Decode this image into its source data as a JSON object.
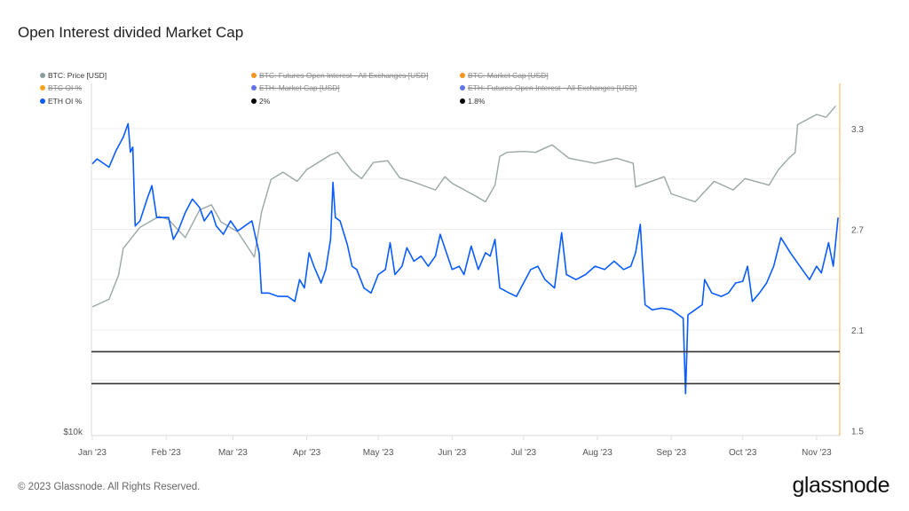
{
  "title": "Open Interest divided Market Cap",
  "footer": "© 2023 Glassnode. All Rights Reserved.",
  "logo": "glassnode",
  "legend": [
    {
      "label": "BTC: Price [USD]",
      "color": "#8c9b9b",
      "active": true
    },
    {
      "label": "BTC: Futures Open Interest - All Exchanges [USD]",
      "color": "#f7931a",
      "active": false
    },
    {
      "label": "BTC: Market Cap [USD]",
      "color": "#f7931a",
      "active": false
    },
    {
      "label": "BTC OI %",
      "color": "#f7a21a",
      "active": false
    },
    {
      "label": "ETH: Market Cap [USD]",
      "color": "#6272ea",
      "active": false
    },
    {
      "label": "ETH: Futures Open Interest - All Exchanges [USD]",
      "color": "#6272ea",
      "active": false
    },
    {
      "label": "ETH OI %",
      "color": "#0a5cff",
      "active": true
    },
    {
      "label": "2%",
      "color": "#000000",
      "active": true
    },
    {
      "label": "1.8%",
      "color": "#000000",
      "active": true
    }
  ],
  "chart_data": {
    "type": "line",
    "title": "Open Interest divided Market Cap",
    "x_ticks": [
      "Jan '23",
      "Feb '23",
      "Mar '23",
      "Apr '23",
      "May '23",
      "Jun '23",
      "Jul '23",
      "Aug '23",
      "Sep '23",
      "Oct '23",
      "Nov '23"
    ],
    "y_left": {
      "scale": "log",
      "range": [
        10000,
        40000
      ],
      "ticks": [
        "$10k"
      ]
    },
    "y_right": {
      "scale": "linear",
      "range": [
        1.47,
        3.57
      ],
      "ticks": [
        "3.3",
        "2.7",
        "2.1",
        "1.5"
      ],
      "grid": [
        1.8,
        2.1,
        2.4,
        2.7,
        3.0,
        3.3
      ]
    },
    "grid": true,
    "legend_placement": "top",
    "series": [
      {
        "name": "BTC: Price [USD]",
        "axis": "left",
        "color": "#9aa7a7",
        "points": [
          [
            "2023-01-01",
            16600
          ],
          [
            "2023-01-08",
            17100
          ],
          [
            "2023-01-12",
            18800
          ],
          [
            "2023-01-14",
            20900
          ],
          [
            "2023-01-21",
            22700
          ],
          [
            "2023-01-29",
            23700
          ],
          [
            "2023-02-02",
            23400
          ],
          [
            "2023-02-09",
            21800
          ],
          [
            "2023-02-15",
            24300
          ],
          [
            "2023-02-20",
            24800
          ],
          [
            "2023-02-24",
            23200
          ],
          [
            "2023-03-03",
            22300
          ],
          [
            "2023-03-10",
            20200
          ],
          [
            "2023-03-13",
            24100
          ],
          [
            "2023-03-17",
            27400
          ],
          [
            "2023-03-22",
            28200
          ],
          [
            "2023-03-28",
            27200
          ],
          [
            "2023-04-01",
            28500
          ],
          [
            "2023-04-11",
            30200
          ],
          [
            "2023-04-14",
            30500
          ],
          [
            "2023-04-20",
            28300
          ],
          [
            "2023-04-24",
            27500
          ],
          [
            "2023-04-29",
            29300
          ],
          [
            "2023-05-05",
            29500
          ],
          [
            "2023-05-10",
            27600
          ],
          [
            "2023-05-15",
            27200
          ],
          [
            "2023-05-25",
            26300
          ],
          [
            "2023-05-29",
            27700
          ],
          [
            "2023-06-01",
            27000
          ],
          [
            "2023-06-10",
            25800
          ],
          [
            "2023-06-15",
            25100
          ],
          [
            "2023-06-19",
            26800
          ],
          [
            "2023-06-21",
            30000
          ],
          [
            "2023-06-24",
            30500
          ],
          [
            "2023-07-01",
            30600
          ],
          [
            "2023-07-06",
            30500
          ],
          [
            "2023-07-13",
            31400
          ],
          [
            "2023-07-20",
            29800
          ],
          [
            "2023-07-31",
            29200
          ],
          [
            "2023-08-09",
            29800
          ],
          [
            "2023-08-16",
            29200
          ],
          [
            "2023-08-17",
            26600
          ],
          [
            "2023-08-29",
            27700
          ],
          [
            "2023-09-01",
            25900
          ],
          [
            "2023-09-11",
            25100
          ],
          [
            "2023-09-19",
            27200
          ],
          [
            "2023-09-27",
            26300
          ],
          [
            "2023-10-02",
            27500
          ],
          [
            "2023-10-12",
            26800
          ],
          [
            "2023-10-16",
            28500
          ],
          [
            "2023-10-20",
            29700
          ],
          [
            "2023-10-23",
            30500
          ],
          [
            "2023-10-24",
            34000
          ],
          [
            "2023-11-01",
            35400
          ],
          [
            "2023-11-05",
            35000
          ],
          [
            "2023-11-09",
            36600
          ]
        ]
      },
      {
        "name": "ETH OI %",
        "axis": "right",
        "color": "#0a5cff",
        "points": [
          [
            "2023-01-01",
            3.09
          ],
          [
            "2023-01-03",
            3.12
          ],
          [
            "2023-01-05",
            3.1
          ],
          [
            "2023-01-08",
            3.07
          ],
          [
            "2023-01-11",
            3.17
          ],
          [
            "2023-01-14",
            3.25
          ],
          [
            "2023-01-16",
            3.33
          ],
          [
            "2023-01-17",
            3.16
          ],
          [
            "2023-01-18",
            3.19
          ],
          [
            "2023-01-19",
            2.72
          ],
          [
            "2023-01-21",
            2.75
          ],
          [
            "2023-01-24",
            2.88
          ],
          [
            "2023-01-26",
            2.96
          ],
          [
            "2023-01-28",
            2.77
          ],
          [
            "2023-01-31",
            2.77
          ],
          [
            "2023-02-02",
            2.77
          ],
          [
            "2023-02-04",
            2.64
          ],
          [
            "2023-02-06",
            2.69
          ],
          [
            "2023-02-09",
            2.8
          ],
          [
            "2023-02-12",
            2.88
          ],
          [
            "2023-02-15",
            2.83
          ],
          [
            "2023-02-17",
            2.75
          ],
          [
            "2023-02-20",
            2.81
          ],
          [
            "2023-02-22",
            2.72
          ],
          [
            "2023-02-25",
            2.67
          ],
          [
            "2023-02-28",
            2.75
          ],
          [
            "2023-03-03",
            2.69
          ],
          [
            "2023-03-06",
            2.72
          ],
          [
            "2023-03-09",
            2.75
          ],
          [
            "2023-03-12",
            2.56
          ],
          [
            "2023-03-13",
            2.32
          ],
          [
            "2023-03-16",
            2.32
          ],
          [
            "2023-03-20",
            2.3
          ],
          [
            "2023-03-24",
            2.3
          ],
          [
            "2023-03-27",
            2.27
          ],
          [
            "2023-03-29",
            2.4
          ],
          [
            "2023-03-31",
            2.35
          ],
          [
            "2023-04-02",
            2.56
          ],
          [
            "2023-04-04",
            2.48
          ],
          [
            "2023-04-07",
            2.38
          ],
          [
            "2023-04-09",
            2.46
          ],
          [
            "2023-04-11",
            2.64
          ],
          [
            "2023-04-12",
            2.98
          ],
          [
            "2023-04-13",
            2.77
          ],
          [
            "2023-04-15",
            2.75
          ],
          [
            "2023-04-18",
            2.61
          ],
          [
            "2023-04-20",
            2.48
          ],
          [
            "2023-04-22",
            2.46
          ],
          [
            "2023-04-25",
            2.35
          ],
          [
            "2023-04-28",
            2.32
          ],
          [
            "2023-05-01",
            2.43
          ],
          [
            "2023-05-04",
            2.46
          ],
          [
            "2023-05-06",
            2.62
          ],
          [
            "2023-05-08",
            2.43
          ],
          [
            "2023-05-11",
            2.48
          ],
          [
            "2023-05-13",
            2.59
          ],
          [
            "2023-05-16",
            2.51
          ],
          [
            "2023-05-19",
            2.54
          ],
          [
            "2023-05-22",
            2.48
          ],
          [
            "2023-05-25",
            2.54
          ],
          [
            "2023-05-27",
            2.67
          ],
          [
            "2023-06-01",
            2.46
          ],
          [
            "2023-06-04",
            2.48
          ],
          [
            "2023-06-06",
            2.43
          ],
          [
            "2023-06-09",
            2.6
          ],
          [
            "2023-06-12",
            2.46
          ],
          [
            "2023-06-15",
            2.56
          ],
          [
            "2023-06-17",
            2.54
          ],
          [
            "2023-06-19",
            2.64
          ],
          [
            "2023-06-21",
            2.35
          ],
          [
            "2023-06-25",
            2.32
          ],
          [
            "2023-06-28",
            2.3
          ],
          [
            "2023-07-01",
            2.38
          ],
          [
            "2023-07-04",
            2.46
          ],
          [
            "2023-07-07",
            2.48
          ],
          [
            "2023-07-10",
            2.4
          ],
          [
            "2023-07-14",
            2.35
          ],
          [
            "2023-07-17",
            2.68
          ],
          [
            "2023-07-19",
            2.43
          ],
          [
            "2023-07-23",
            2.4
          ],
          [
            "2023-07-27",
            2.43
          ],
          [
            "2023-07-31",
            2.48
          ],
          [
            "2023-08-04",
            2.46
          ],
          [
            "2023-08-08",
            2.51
          ],
          [
            "2023-08-12",
            2.46
          ],
          [
            "2023-08-15",
            2.48
          ],
          [
            "2023-08-17",
            2.56
          ],
          [
            "2023-08-19",
            2.73
          ],
          [
            "2023-08-20",
            2.48
          ],
          [
            "2023-08-21",
            2.25
          ],
          [
            "2023-08-24",
            2.22
          ],
          [
            "2023-08-28",
            2.23
          ],
          [
            "2023-09-01",
            2.22
          ],
          [
            "2023-09-04",
            2.19
          ],
          [
            "2023-09-06",
            2.17
          ],
          [
            "2023-09-07",
            1.72
          ],
          [
            "2023-09-08",
            2.19
          ],
          [
            "2023-09-11",
            2.22
          ],
          [
            "2023-09-14",
            2.25
          ],
          [
            "2023-09-15",
            2.4
          ],
          [
            "2023-09-18",
            2.32
          ],
          [
            "2023-09-22",
            2.3
          ],
          [
            "2023-09-25",
            2.32
          ],
          [
            "2023-09-28",
            2.38
          ],
          [
            "2023-10-01",
            2.39
          ],
          [
            "2023-10-03",
            2.48
          ],
          [
            "2023-10-05",
            2.27
          ],
          [
            "2023-10-08",
            2.32
          ],
          [
            "2023-10-11",
            2.38
          ],
          [
            "2023-10-14",
            2.48
          ],
          [
            "2023-10-17",
            2.65
          ],
          [
            "2023-10-21",
            2.56
          ],
          [
            "2023-10-25",
            2.48
          ],
          [
            "2023-10-29",
            2.4
          ],
          [
            "2023-11-01",
            2.48
          ],
          [
            "2023-11-03",
            2.44
          ],
          [
            "2023-11-06",
            2.62
          ],
          [
            "2023-11-08",
            2.48
          ],
          [
            "2023-11-10",
            2.77
          ]
        ]
      },
      {
        "name": "2%",
        "axis": "right",
        "color": "#333333",
        "constant": 1.97
      },
      {
        "name": "1.8%",
        "axis": "right",
        "color": "#333333",
        "constant": 1.78
      }
    ]
  }
}
